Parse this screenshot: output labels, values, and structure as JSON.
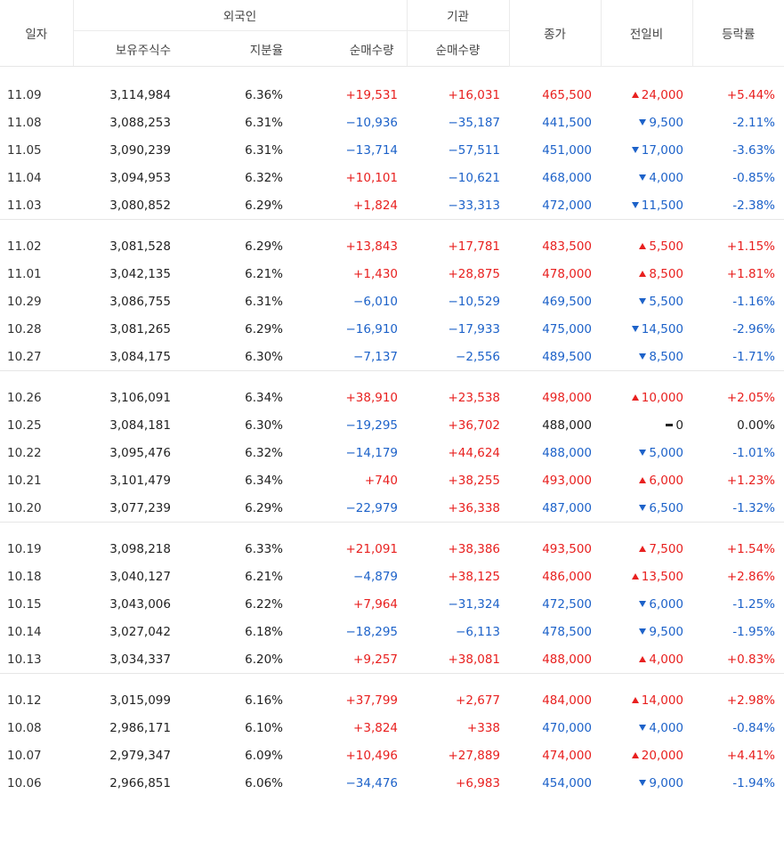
{
  "header": {
    "date": "일자",
    "foreign_group": "외국인",
    "institution_group": "기관",
    "holdings": "보유주식수",
    "ratio": "지분율",
    "foreign_net": "순매수량",
    "inst_net": "순매수량",
    "close": "종가",
    "change": "전일비",
    "rate": "등락률"
  },
  "groups": [
    [
      {
        "date": "11.09",
        "hold": "3,114,984",
        "ratio": "6.36%",
        "fnet": "+19,531",
        "inet": "+16,031",
        "close": "465,500",
        "dir": "up",
        "chg": "24,000",
        "rate": "+5.44%"
      },
      {
        "date": "11.08",
        "hold": "3,088,253",
        "ratio": "6.31%",
        "fnet": "−10,936",
        "inet": "−35,187",
        "close": "441,500",
        "dir": "down",
        "chg": "9,500",
        "rate": "-2.11%"
      },
      {
        "date": "11.05",
        "hold": "3,090,239",
        "ratio": "6.31%",
        "fnet": "−13,714",
        "inet": "−57,511",
        "close": "451,000",
        "dir": "down",
        "chg": "17,000",
        "rate": "-3.63%"
      },
      {
        "date": "11.04",
        "hold": "3,094,953",
        "ratio": "6.32%",
        "fnet": "+10,101",
        "inet": "−10,621",
        "close": "468,000",
        "dir": "down",
        "chg": "4,000",
        "rate": "-0.85%"
      },
      {
        "date": "11.03",
        "hold": "3,080,852",
        "ratio": "6.29%",
        "fnet": "+1,824",
        "inet": "−33,313",
        "close": "472,000",
        "dir": "down",
        "chg": "11,500",
        "rate": "-2.38%"
      }
    ],
    [
      {
        "date": "11.02",
        "hold": "3,081,528",
        "ratio": "6.29%",
        "fnet": "+13,843",
        "inet": "+17,781",
        "close": "483,500",
        "dir": "up",
        "chg": "5,500",
        "rate": "+1.15%"
      },
      {
        "date": "11.01",
        "hold": "3,042,135",
        "ratio": "6.21%",
        "fnet": "+1,430",
        "inet": "+28,875",
        "close": "478,000",
        "dir": "up",
        "chg": "8,500",
        "rate": "+1.81%"
      },
      {
        "date": "10.29",
        "hold": "3,086,755",
        "ratio": "6.31%",
        "fnet": "−6,010",
        "inet": "−10,529",
        "close": "469,500",
        "dir": "down",
        "chg": "5,500",
        "rate": "-1.16%"
      },
      {
        "date": "10.28",
        "hold": "3,081,265",
        "ratio": "6.29%",
        "fnet": "−16,910",
        "inet": "−17,933",
        "close": "475,000",
        "dir": "down",
        "chg": "14,500",
        "rate": "-2.96%"
      },
      {
        "date": "10.27",
        "hold": "3,084,175",
        "ratio": "6.30%",
        "fnet": "−7,137",
        "inet": "−2,556",
        "close": "489,500",
        "dir": "down",
        "chg": "8,500",
        "rate": "-1.71%"
      }
    ],
    [
      {
        "date": "10.26",
        "hold": "3,106,091",
        "ratio": "6.34%",
        "fnet": "+38,910",
        "inet": "+23,538",
        "close": "498,000",
        "dir": "up",
        "chg": "10,000",
        "rate": "+2.05%"
      },
      {
        "date": "10.25",
        "hold": "3,084,181",
        "ratio": "6.30%",
        "fnet": "−19,295",
        "inet": "+36,702",
        "close": "488,000",
        "dir": "flat",
        "chg": "0",
        "rate": "0.00%"
      },
      {
        "date": "10.22",
        "hold": "3,095,476",
        "ratio": "6.32%",
        "fnet": "−14,179",
        "inet": "+44,624",
        "close": "488,000",
        "dir": "down",
        "chg": "5,000",
        "rate": "-1.01%"
      },
      {
        "date": "10.21",
        "hold": "3,101,479",
        "ratio": "6.34%",
        "fnet": "+740",
        "inet": "+38,255",
        "close": "493,000",
        "dir": "up",
        "chg": "6,000",
        "rate": "+1.23%"
      },
      {
        "date": "10.20",
        "hold": "3,077,239",
        "ratio": "6.29%",
        "fnet": "−22,979",
        "inet": "+36,338",
        "close": "487,000",
        "dir": "down",
        "chg": "6,500",
        "rate": "-1.32%"
      }
    ],
    [
      {
        "date": "10.19",
        "hold": "3,098,218",
        "ratio": "6.33%",
        "fnet": "+21,091",
        "inet": "+38,386",
        "close": "493,500",
        "dir": "up",
        "chg": "7,500",
        "rate": "+1.54%"
      },
      {
        "date": "10.18",
        "hold": "3,040,127",
        "ratio": "6.21%",
        "fnet": "−4,879",
        "inet": "+38,125",
        "close": "486,000",
        "dir": "up",
        "chg": "13,500",
        "rate": "+2.86%"
      },
      {
        "date": "10.15",
        "hold": "3,043,006",
        "ratio": "6.22%",
        "fnet": "+7,964",
        "inet": "−31,324",
        "close": "472,500",
        "dir": "down",
        "chg": "6,000",
        "rate": "-1.25%"
      },
      {
        "date": "10.14",
        "hold": "3,027,042",
        "ratio": "6.18%",
        "fnet": "−18,295",
        "inet": "−6,113",
        "close": "478,500",
        "dir": "down",
        "chg": "9,500",
        "rate": "-1.95%"
      },
      {
        "date": "10.13",
        "hold": "3,034,337",
        "ratio": "6.20%",
        "fnet": "+9,257",
        "inet": "+38,081",
        "close": "488,000",
        "dir": "up",
        "chg": "4,000",
        "rate": "+0.83%"
      }
    ],
    [
      {
        "date": "10.12",
        "hold": "3,015,099",
        "ratio": "6.16%",
        "fnet": "+37,799",
        "inet": "+2,677",
        "close": "484,000",
        "dir": "up",
        "chg": "14,000",
        "rate": "+2.98%"
      },
      {
        "date": "10.08",
        "hold": "2,986,171",
        "ratio": "6.10%",
        "fnet": "+3,824",
        "inet": "+338",
        "close": "470,000",
        "dir": "down",
        "chg": "4,000",
        "rate": "-0.84%"
      },
      {
        "date": "10.07",
        "hold": "2,979,347",
        "ratio": "6.09%",
        "fnet": "+10,496",
        "inet": "+27,889",
        "close": "474,000",
        "dir": "up",
        "chg": "20,000",
        "rate": "+4.41%"
      },
      {
        "date": "10.06",
        "hold": "2,966,851",
        "ratio": "6.06%",
        "fnet": "−34,476",
        "inet": "+6,983",
        "close": "454,000",
        "dir": "down",
        "chg": "9,000",
        "rate": "-1.94%"
      }
    ]
  ]
}
